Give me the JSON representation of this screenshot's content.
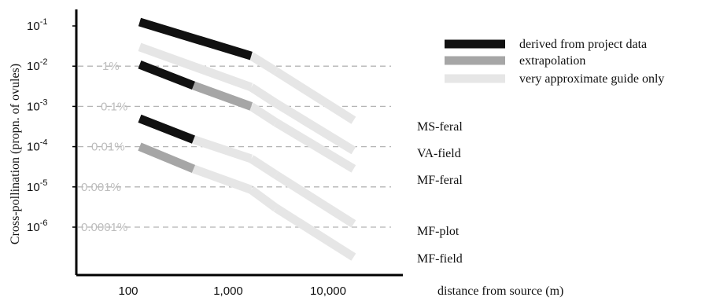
{
  "chart_data": {
    "type": "line",
    "xlabel": "distance from source (m)",
    "ylabel": "Cross-pollination (propn. of ovules)",
    "x_scale": "log",
    "y_scale": "log",
    "xlim": [
      70,
      25000
    ],
    "ylim": [
      5e-08,
      0.2
    ],
    "x_ticks": [
      {
        "value": 100,
        "label": "100"
      },
      {
        "value": 1000,
        "label": "1,000"
      },
      {
        "value": 10000,
        "label": "10,000"
      }
    ],
    "y_ticks": [
      {
        "value": 0.1,
        "base": "10",
        "exp": "-1"
      },
      {
        "value": 0.01,
        "base": "10",
        "exp": "-2"
      },
      {
        "value": 0.001,
        "base": "10",
        "exp": "-3"
      },
      {
        "value": 0.0001,
        "base": "10",
        "exp": "-4"
      },
      {
        "value": 1e-05,
        "base": "10",
        "exp": "-5"
      },
      {
        "value": 1e-06,
        "base": "10",
        "exp": "-6"
      }
    ],
    "reference_lines": [
      {
        "value": 0.01,
        "label": "1%"
      },
      {
        "value": 0.001,
        "label": "0.1%"
      },
      {
        "value": 0.0001,
        "label": "0.01%"
      },
      {
        "value": 1e-05,
        "label": "0.001%"
      },
      {
        "value": 1e-06,
        "label": "0.0001%"
      }
    ],
    "legend_position": "top-right",
    "legend": [
      {
        "key": "derived",
        "label": "derived from project data",
        "color": "#111111"
      },
      {
        "key": "extrap",
        "label": "extrapolation",
        "color": "#a6a6a6"
      },
      {
        "key": "guide",
        "label": "very approximate guide only",
        "color": "#e6e6e6"
      }
    ],
    "series": [
      {
        "name": "MS-feral",
        "points": [
          [
            130,
            0.125
          ],
          [
            1700,
            0.018
          ],
          [
            3000,
            0.0075
          ],
          [
            18000,
            0.00045
          ]
        ],
        "segment_styles": [
          "derived",
          "guide",
          "guide"
        ]
      },
      {
        "name": "VA-field",
        "points": [
          [
            130,
            0.03
          ],
          [
            1700,
            0.003
          ],
          [
            3000,
            0.0012
          ],
          [
            18000,
            8e-05
          ]
        ],
        "segment_styles": [
          "guide",
          "guide",
          "guide"
        ]
      },
      {
        "name": "MF-feral",
        "points": [
          [
            130,
            0.011
          ],
          [
            450,
            0.0033
          ],
          [
            1700,
            0.001
          ],
          [
            3000,
            0.0004
          ],
          [
            18000,
            2.8e-05
          ]
        ],
        "segment_styles": [
          "derived",
          "extrap",
          "guide",
          "guide"
        ]
      },
      {
        "name": "MF-plot",
        "points": [
          [
            130,
            0.0005
          ],
          [
            450,
            0.00015
          ],
          [
            1700,
            5e-05
          ],
          [
            3000,
            2e-05
          ],
          [
            18000,
            1.2e-06
          ]
        ],
        "segment_styles": [
          "derived",
          "guide",
          "guide",
          "guide"
        ]
      },
      {
        "name": "MF-field",
        "points": [
          [
            130,
            0.0001
          ],
          [
            450,
            2.8e-05
          ],
          [
            1700,
            8.5e-06
          ],
          [
            3000,
            3e-06
          ],
          [
            18000,
            1.8e-07
          ]
        ],
        "segment_styles": [
          "extrap",
          "guide",
          "guide",
          "guide"
        ]
      }
    ]
  }
}
